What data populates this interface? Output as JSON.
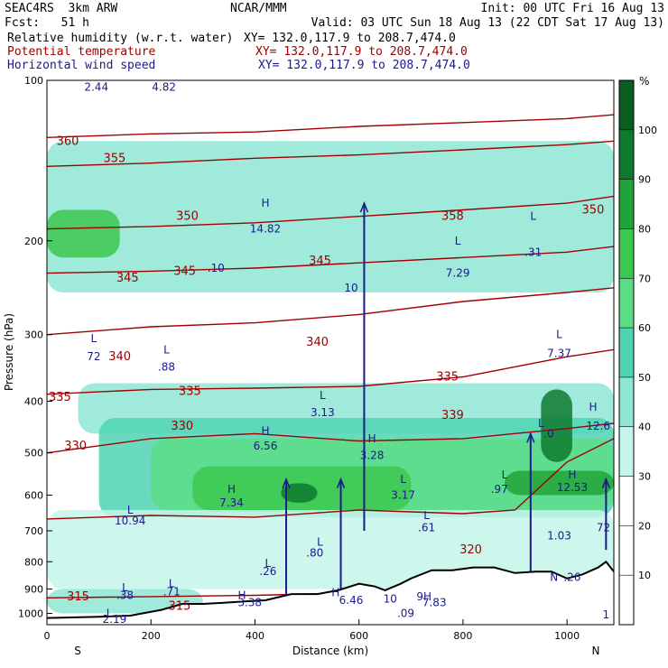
{
  "header": {
    "model": "SEAC4RS  3km ARW",
    "org": "NCAR/MMM",
    "init": "Init: 00 UTC Fri 16 Aug 13",
    "fcst": "Fcst:   51 h",
    "valid": "Valid: 03 UTC Sun 18 Aug 13 (22 CDT Sat 17 Aug 13)",
    "fields": [
      {
        "name": "Relative humidity (w.r.t. water)",
        "xy": "XY= 132.0,117.9 to 208.7,474.0",
        "color": "#000000"
      },
      {
        "name": "Potential temperature",
        "xy": "XY= 132.0,117.9 to 208.7,474.0",
        "color": "#a00000"
      },
      {
        "name": "Horizontal wind speed",
        "xy": "XY= 132.0,117.9 to 208.7,474.0",
        "color": "#1a1a8c"
      }
    ]
  },
  "chart_data": {
    "type": "heatmap",
    "title": "",
    "xlabel": "Distance (km)",
    "ylabel": "Pressure (hPa)",
    "xlim": [
      0,
      1090
    ],
    "ylim": [
      1050,
      100
    ],
    "y_scale": "log",
    "x_ticks": [
      0,
      200,
      400,
      600,
      800,
      1000
    ],
    "y_ticks": [
      100,
      200,
      300,
      400,
      500,
      600,
      700,
      800,
      900,
      1000
    ],
    "x_end_labels": {
      "left": "S",
      "right": "N"
    },
    "colorbar": {
      "unit": "%",
      "levels": [
        10,
        20,
        30,
        40,
        50,
        60,
        70,
        80,
        90,
        100
      ],
      "colors": [
        "#ffffff",
        "#ffffff",
        "#ffffff",
        "#c4f5ea",
        "#8ee6d4",
        "#4fd3b4",
        "#5ddc86",
        "#3cc84f",
        "#22a33a",
        "#0e7a2e",
        "#0b5e22"
      ]
    },
    "rh_bands": [
      {
        "p_top": 130,
        "p_bot": 250,
        "x0": 0,
        "x1": 1090,
        "level": 40
      },
      {
        "p_top": 175,
        "p_bot": 215,
        "x0": 0,
        "x1": 140,
        "level": 70
      },
      {
        "p_top": 370,
        "p_bot": 460,
        "x0": 60,
        "x1": 1090,
        "level": 40
      },
      {
        "p_top": 430,
        "p_bot": 660,
        "x0": 100,
        "x1": 1090,
        "level": 50
      },
      {
        "p_top": 470,
        "p_bot": 640,
        "x0": 200,
        "x1": 1090,
        "level": 60
      },
      {
        "p_top": 530,
        "p_bot": 640,
        "x0": 280,
        "x1": 700,
        "level": 70
      },
      {
        "p_top": 570,
        "p_bot": 620,
        "x0": 450,
        "x1": 520,
        "level": 90
      },
      {
        "p_top": 540,
        "p_bot": 600,
        "x0": 880,
        "x1": 1090,
        "level": 80
      },
      {
        "p_top": 380,
        "p_bot": 520,
        "x0": 950,
        "x1": 1010,
        "level": 90
      },
      {
        "p_top": 640,
        "p_bot": 900,
        "x0": 0,
        "x1": 1090,
        "level": 30
      },
      {
        "p_top": 900,
        "p_bot": 1000,
        "x0": 0,
        "x1": 300,
        "level": 40
      }
    ],
    "theta_contours": [
      {
        "label": "315",
        "x": [
          0,
          200,
          400,
          600
        ],
        "p": [
          935,
          930,
          925,
          915
        ]
      },
      {
        "label": "320",
        "x": [
          0,
          200,
          400,
          600,
          800,
          900,
          1000,
          1090
        ],
        "p": [
          665,
          655,
          660,
          640,
          650,
          640,
          520,
          470
        ]
      },
      {
        "label": "330",
        "x": [
          0,
          200,
          400,
          600,
          800,
          1000,
          1090
        ],
        "p": [
          500,
          470,
          460,
          475,
          470,
          450,
          440
        ]
      },
      {
        "label": "335",
        "x": [
          0,
          200,
          400,
          600,
          800,
          1000,
          1090
        ],
        "p": [
          388,
          380,
          378,
          375,
          360,
          330,
          320
        ]
      },
      {
        "label": "340",
        "x": [
          0,
          200,
          400,
          600,
          800,
          1000,
          1090
        ],
        "p": [
          300,
          290,
          285,
          275,
          260,
          250,
          245
        ]
      },
      {
        "label": "345",
        "x": [
          0,
          200,
          400,
          600,
          800,
          1000,
          1090
        ],
        "p": [
          230,
          228,
          225,
          220,
          215,
          210,
          205
        ]
      },
      {
        "label": "350",
        "x": [
          0,
          200,
          400,
          600,
          800,
          1000,
          1090
        ],
        "p": [
          190,
          188,
          185,
          180,
          175,
          170,
          165
        ]
      },
      {
        "label": "355",
        "x": [
          0,
          200,
          400,
          600,
          800,
          1000,
          1090
        ],
        "p": [
          145,
          143,
          140,
          138,
          135,
          132,
          130
        ]
      },
      {
        "label": "360",
        "x": [
          0,
          200,
          400,
          600,
          800,
          1000,
          1090
        ],
        "p": [
          128,
          126,
          125,
          122,
          120,
          118,
          116
        ]
      }
    ],
    "theta_labels": [
      {
        "text": "315",
        "x": 60,
        "p": 930
      },
      {
        "text": "315",
        "x": 255,
        "p": 970
      },
      {
        "text": "320",
        "x": 815,
        "p": 760
      },
      {
        "text": "330",
        "x": 55,
        "p": 485
      },
      {
        "text": "330",
        "x": 260,
        "p": 445
      },
      {
        "text": "335",
        "x": 25,
        "p": 393
      },
      {
        "text": "335",
        "x": 275,
        "p": 383
      },
      {
        "text": "335",
        "x": 770,
        "p": 360
      },
      {
        "text": "339",
        "x": 780,
        "p": 425
      },
      {
        "text": "340",
        "x": 140,
        "p": 330
      },
      {
        "text": "340",
        "x": 520,
        "p": 310
      },
      {
        "text": "345",
        "x": 155,
        "p": 235
      },
      {
        "text": "345",
        "x": 265,
        "p": 228
      },
      {
        "text": "345",
        "x": 525,
        "p": 218
      },
      {
        "text": "350",
        "x": 270,
        "p": 180
      },
      {
        "text": "350",
        "x": 1050,
        "p": 175
      },
      {
        "text": "355",
        "x": 130,
        "p": 140
      },
      {
        "text": "360",
        "x": 40,
        "p": 130
      },
      {
        "text": "358",
        "x": 780,
        "p": 180
      }
    ],
    "hl_labels": [
      {
        "text": "L",
        "x": 90,
        "p": 305
      },
      {
        "text": "72",
        "x": 90,
        "p": 330
      },
      {
        "text": "L",
        "x": 230,
        "p": 320
      },
      {
        "text": ".88",
        "x": 230,
        "p": 345
      },
      {
        "text": "H",
        "x": 420,
        "p": 170
      },
      {
        "text": "14.82",
        "x": 420,
        "p": 190
      },
      {
        "text": ".10",
        "x": 325,
        "p": 225
      },
      {
        "text": "10",
        "x": 585,
        "p": 245
      },
      {
        "text": "L",
        "x": 790,
        "p": 200
      },
      {
        "text": "7.29",
        "x": 790,
        "p": 230
      },
      {
        "text": "L",
        "x": 935,
        "p": 180
      },
      {
        "text": ".31",
        "x": 935,
        "p": 210
      },
      {
        "text": "L",
        "x": 985,
        "p": 300
      },
      {
        "text": "7.37",
        "x": 985,
        "p": 325
      },
      {
        "text": "L",
        "x": 530,
        "p": 390
      },
      {
        "text": "3.13",
        "x": 530,
        "p": 420
      },
      {
        "text": "H",
        "x": 420,
        "p": 455
      },
      {
        "text": "6.56",
        "x": 420,
        "p": 485
      },
      {
        "text": "H",
        "x": 625,
        "p": 470
      },
      {
        "text": "3.28",
        "x": 625,
        "p": 505
      },
      {
        "text": "H",
        "x": 1050,
        "p": 410
      },
      {
        "text": "12.6",
        "x": 1060,
        "p": 445
      },
      {
        "text": "L",
        "x": 950,
        "p": 440
      },
      {
        "text": ".0",
        "x": 965,
        "p": 460
      },
      {
        "text": "L",
        "x": 685,
        "p": 560
      },
      {
        "text": "3.17",
        "x": 685,
        "p": 600
      },
      {
        "text": "L",
        "x": 880,
        "p": 550
      },
      {
        "text": ".97",
        "x": 870,
        "p": 585
      },
      {
        "text": "H",
        "x": 1010,
        "p": 550
      },
      {
        "text": "12.53",
        "x": 1010,
        "p": 580
      },
      {
        "text": "H",
        "x": 355,
        "p": 585
      },
      {
        "text": "7.34",
        "x": 355,
        "p": 620
      },
      {
        "text": "L",
        "x": 160,
        "p": 640
      },
      {
        "text": "10.94",
        "x": 160,
        "p": 670
      },
      {
        "text": "L",
        "x": 730,
        "p": 655
      },
      {
        "text": ".61",
        "x": 730,
        "p": 690
      },
      {
        "text": "1.03",
        "x": 985,
        "p": 715
      },
      {
        "text": "72",
        "x": 1070,
        "p": 690
      },
      {
        "text": "L",
        "x": 525,
        "p": 735
      },
      {
        "text": ".80",
        "x": 515,
        "p": 770
      },
      {
        "text": "L",
        "x": 425,
        "p": 805
      },
      {
        "text": ".26",
        "x": 425,
        "p": 835
      },
      {
        "text": "N",
        "x": 975,
        "p": 855
      },
      {
        "text": ".26",
        "x": 1010,
        "p": 855
      },
      {
        "text": "L",
        "x": 240,
        "p": 880
      },
      {
        "text": ".71",
        "x": 240,
        "p": 910
      },
      {
        "text": "L",
        "x": 150,
        "p": 895
      },
      {
        "text": ".38",
        "x": 150,
        "p": 925
      },
      {
        "text": "H",
        "x": 555,
        "p": 915
      },
      {
        "text": "6.46",
        "x": 585,
        "p": 945
      },
      {
        "text": "H",
        "x": 375,
        "p": 925
      },
      {
        "text": "3.38",
        "x": 390,
        "p": 955
      },
      {
        "text": "9H",
        "x": 725,
        "p": 930
      },
      {
        "text": "7.83",
        "x": 745,
        "p": 955
      },
      {
        "text": "10",
        "x": 660,
        "p": 940
      },
      {
        "text": ".09",
        "x": 690,
        "p": 1000
      },
      {
        "text": "L",
        "x": 120,
        "p": 1000
      },
      {
        "text": "2.19",
        "x": 130,
        "p": 1025
      },
      {
        "text": "2.44",
        "x": 95,
        "p": 103
      },
      {
        "text": "4.82",
        "x": 225,
        "p": 103
      },
      {
        "text": "1",
        "x": 1075,
        "p": 1005
      }
    ],
    "terrain": {
      "x": [
        0,
        100,
        160,
        220,
        260,
        300,
        340,
        380,
        420,
        470,
        520,
        560,
        600,
        630,
        650,
        680,
        700,
        740,
        780,
        820,
        860,
        900,
        940,
        970,
        1000,
        1030,
        1060,
        1075,
        1090
      ],
      "p": [
        1020,
        1015,
        1010,
        985,
        960,
        960,
        955,
        950,
        945,
        920,
        920,
        905,
        880,
        890,
        905,
        880,
        860,
        830,
        830,
        820,
        820,
        840,
        835,
        835,
        860,
        845,
        820,
        800,
        835
      ]
    },
    "wind_arrows": [
      {
        "x": 610,
        "p_top": 170,
        "p_bot": 700,
        "label": ""
      },
      {
        "x": 565,
        "p_top": 560,
        "p_bot": 980,
        "label": ""
      },
      {
        "x": 460,
        "p_top": 560,
        "p_bot": 940,
        "label": ""
      },
      {
        "x": 930,
        "p_top": 460,
        "p_bot": 880,
        "label": ""
      },
      {
        "x": 1075,
        "p_top": 560,
        "p_bot": 760,
        "label": ""
      }
    ]
  }
}
